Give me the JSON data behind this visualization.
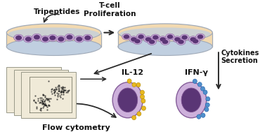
{
  "bg_color": "#ffffff",
  "dish_fill_top": "#f2d9b0",
  "dish_fill_bottom": "#c0cfe0",
  "dish_edge": "#a0aab8",
  "cell_purple_light": "#c8a8d8",
  "cell_purple_dark": "#5a3575",
  "cell_outline": "#7a5090",
  "arrow_color": "#2a2a2a",
  "text_color": "#111111",
  "label_tripeptides": "Tripeptides",
  "label_tcell": "T-cell\nProliferation",
  "label_cytokines": "Cytokines\nSecretion",
  "label_il12": "IL-12",
  "label_ifng": "IFN-γ",
  "label_flowcyto": "Flow cytometry",
  "il12_bead_color": "#e8b820",
  "ifng_bead_color": "#5090cc",
  "panel_bg": "#f0ead8",
  "panel_edge": "#999988"
}
